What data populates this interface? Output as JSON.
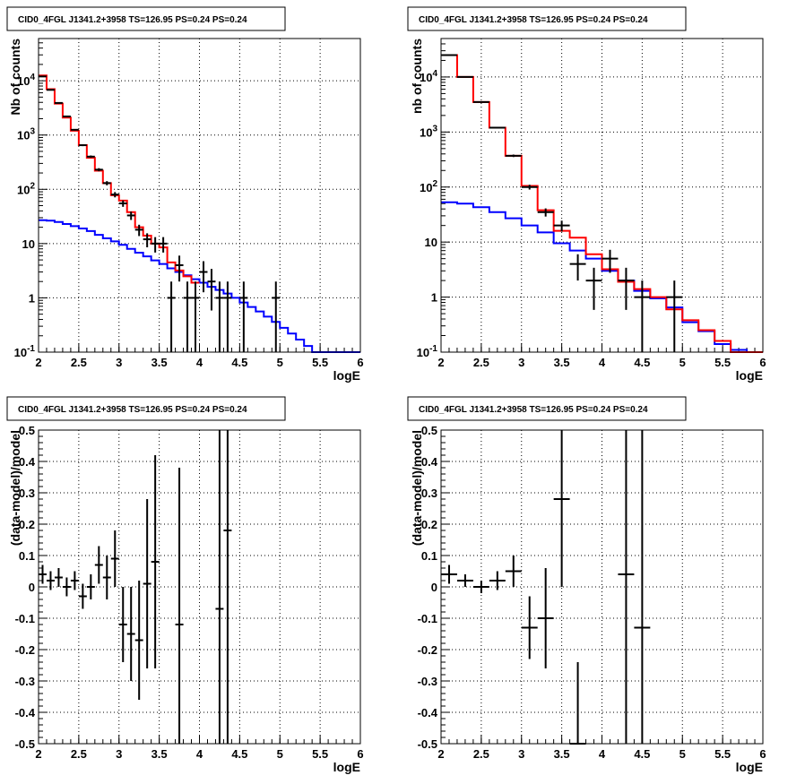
{
  "chart_data": [
    {
      "type": "line",
      "title": "CID0_4FGL J1341.2+3958 TS=126.95 PS=0.24 PS=0.24",
      "xlabel": "logE",
      "ylabel": "Nb of counts",
      "xlim": [
        2,
        6
      ],
      "ylim": [
        0.1,
        60000
      ],
      "yscale": "log",
      "grid": true,
      "xticks": [
        "2",
        "2.5",
        "3",
        "3.5",
        "4",
        "4.5",
        "5",
        "5.5",
        "6"
      ],
      "yticks": [
        "10^-1",
        "1",
        "10",
        "10^2",
        "10^3",
        "10^4"
      ],
      "model_total": {
        "color": "#ff0000",
        "edges": [
          2,
          2.1,
          2.2,
          2.3,
          2.4,
          2.5,
          2.6,
          2.7,
          2.8,
          2.9,
          3,
          3.1,
          3.2,
          3.3,
          3.4,
          3.5,
          3.6,
          3.7,
          3.8,
          3.9,
          4
        ],
        "values": [
          12500,
          7000,
          3800,
          2100,
          1200,
          650,
          380,
          220,
          130,
          78,
          62,
          38,
          20,
          14,
          10,
          8.5,
          4.5,
          3.2,
          2.5,
          1.9
        ]
      },
      "model_background": {
        "color": "#0000ff",
        "edges": [
          2,
          2.1,
          2.2,
          2.3,
          2.4,
          2.5,
          2.6,
          2.7,
          2.8,
          2.9,
          3,
          3.1,
          3.2,
          3.3,
          3.4,
          3.5,
          3.6,
          3.7,
          3.8,
          3.9,
          4,
          4.1,
          4.2,
          4.3,
          4.4,
          4.5,
          4.6,
          4.7,
          4.8,
          4.9,
          5,
          5.1,
          5.2,
          5.3,
          5.4,
          5.5,
          5.6,
          5.7,
          5.8,
          5.9,
          6
        ],
        "values": [
          27,
          26.5,
          25,
          23,
          21,
          19,
          17,
          14.5,
          12.5,
          11,
          9.5,
          8,
          6.8,
          5.8,
          4.9,
          4.2,
          3.5,
          3,
          2.6,
          2.2,
          1.9,
          1.6,
          1.4,
          1.2,
          1,
          0.82,
          0.68,
          0.56,
          0.45,
          0.36,
          0.28,
          0.22,
          0.17,
          0.13,
          0.1,
          0.1,
          0.1,
          0.1,
          0.1,
          0.1
        ]
      },
      "data_points": {
        "x": [
          2.05,
          2.15,
          2.25,
          2.35,
          2.45,
          2.55,
          2.65,
          2.75,
          2.85,
          2.95,
          3.05,
          3.15,
          3.25,
          3.35,
          3.45,
          3.55,
          3.65,
          3.75,
          3.85,
          3.95,
          4.05,
          4.15,
          4.25,
          4.35,
          4.55,
          4.95
        ],
        "y": [
          12000,
          6800,
          3900,
          2200,
          1250,
          650,
          400,
          230,
          130,
          80,
          55,
          33,
          18,
          12,
          10,
          10,
          1,
          4,
          1,
          1,
          3,
          2,
          1,
          1,
          1,
          1
        ]
      }
    },
    {
      "type": "line",
      "title": "CID0_4FGL J1341.2+3958 TS=126.95 PS=0.24 PS=0.24",
      "xlabel": "logE",
      "ylabel": "nb of counts",
      "xlim": [
        2,
        6
      ],
      "ylim": [
        0.1,
        50000
      ],
      "yscale": "log",
      "grid": true,
      "xticks": [
        "2",
        "2.5",
        "3",
        "3.5",
        "4",
        "4.5",
        "5",
        "5.5",
        "6"
      ],
      "yticks": [
        "10^-1",
        "1",
        "10",
        "10^2",
        "10^3",
        "10^4"
      ],
      "model_total": {
        "color": "#ff0000",
        "edges": [
          2,
          2.2,
          2.4,
          2.6,
          2.8,
          3,
          3.2,
          3.4,
          3.6,
          3.8,
          4,
          4.2,
          4.4,
          4.6,
          4.8,
          5,
          5.2,
          5.4,
          5.6,
          5.8,
          6
        ],
        "values": [
          25000,
          10000,
          3500,
          1200,
          370,
          105,
          38,
          16,
          12,
          6,
          3.2,
          1.9,
          1.4,
          1,
          0.6,
          0.38,
          0.25,
          0.16,
          0.1,
          0.1
        ]
      },
      "model_background": {
        "color": "#0000ff",
        "edges": [
          2,
          2.2,
          2.4,
          2.6,
          2.8,
          3,
          3.2,
          3.4,
          3.6,
          3.8,
          4,
          4.2,
          4.4,
          4.6,
          4.8,
          5,
          5.2,
          5.4,
          5.6,
          5.8,
          6
        ],
        "values": [
          53,
          50,
          43,
          35,
          27,
          20,
          15,
          9.5,
          7,
          5,
          3,
          2,
          1.3,
          0.95,
          0.65,
          0.35,
          0.24,
          0.14,
          0.11,
          0.1
        ]
      },
      "data_points": {
        "x": [
          2.1,
          2.3,
          2.5,
          2.7,
          2.9,
          3.1,
          3.3,
          3.5,
          3.7,
          3.9,
          4.1,
          4.3,
          4.5,
          4.9
        ],
        "y": [
          25000,
          10000,
          3500,
          1200,
          370,
          100,
          35,
          20,
          4,
          2,
          5,
          2,
          1,
          1
        ]
      }
    },
    {
      "type": "scatter",
      "title": "CID0_4FGL J1341.2+3958 TS=126.95 PS=0.24 PS=0.24",
      "xlabel": "logE",
      "ylabel": "(data-model)/model",
      "xlim": [
        2,
        6
      ],
      "ylim": [
        -0.5,
        0.5
      ],
      "grid": true,
      "xticks": [
        "2",
        "2.5",
        "3",
        "3.5",
        "4",
        "4.5",
        "5",
        "5.5",
        "6"
      ],
      "yticks": [
        "-0.5",
        "-0.4",
        "-0.3",
        "-0.2",
        "-0.1",
        "0",
        "0.1",
        "0.2",
        "0.3",
        "0.4",
        "0.5"
      ],
      "x": [
        2.05,
        2.15,
        2.25,
        2.35,
        2.45,
        2.55,
        2.65,
        2.75,
        2.85,
        2.95,
        3.05,
        3.15,
        3.25,
        3.35,
        3.45,
        3.75,
        4.25,
        4.35
      ],
      "y": [
        0.04,
        0.02,
        0.03,
        0.0,
        0.02,
        -0.03,
        0.0,
        0.07,
        0.03,
        0.09,
        -0.12,
        -0.15,
        -0.17,
        0.01,
        0.08,
        -0.12,
        -0.07,
        0.18
      ],
      "yerr": [
        0.03,
        0.03,
        0.03,
        0.03,
        0.03,
        0.04,
        0.04,
        0.06,
        0.07,
        0.09,
        0.12,
        0.15,
        0.19,
        0.27,
        0.34,
        0.5,
        0.9,
        0.9
      ]
    },
    {
      "type": "scatter",
      "title": "CID0_4FGL J1341.2+3958 TS=126.95 PS=0.24 PS=0.24",
      "xlabel": "logE",
      "ylabel": "(data-model)/model",
      "xlim": [
        2,
        6
      ],
      "ylim": [
        -0.5,
        0.5
      ],
      "grid": true,
      "xticks": [
        "2",
        "2.5",
        "3",
        "3.5",
        "4",
        "4.5",
        "5",
        "5.5",
        "6"
      ],
      "yticks": [
        "-0.5",
        "-0.4",
        "-0.3",
        "-0.2",
        "-0.1",
        "0",
        "0.1",
        "0.2",
        "0.3",
        "0.4",
        "0.5"
      ],
      "x": [
        2.1,
        2.3,
        2.5,
        2.7,
        2.9,
        3.1,
        3.3,
        3.5,
        3.7,
        4.3,
        4.5
      ],
      "y": [
        0.04,
        0.02,
        0.0,
        0.02,
        0.05,
        -0.13,
        -0.1,
        0.28,
        -0.5,
        0.04,
        -0.13
      ],
      "yerr": [
        0.03,
        0.02,
        0.02,
        0.03,
        0.05,
        0.1,
        0.16,
        0.28,
        0.26,
        0.8,
        0.8
      ]
    }
  ]
}
